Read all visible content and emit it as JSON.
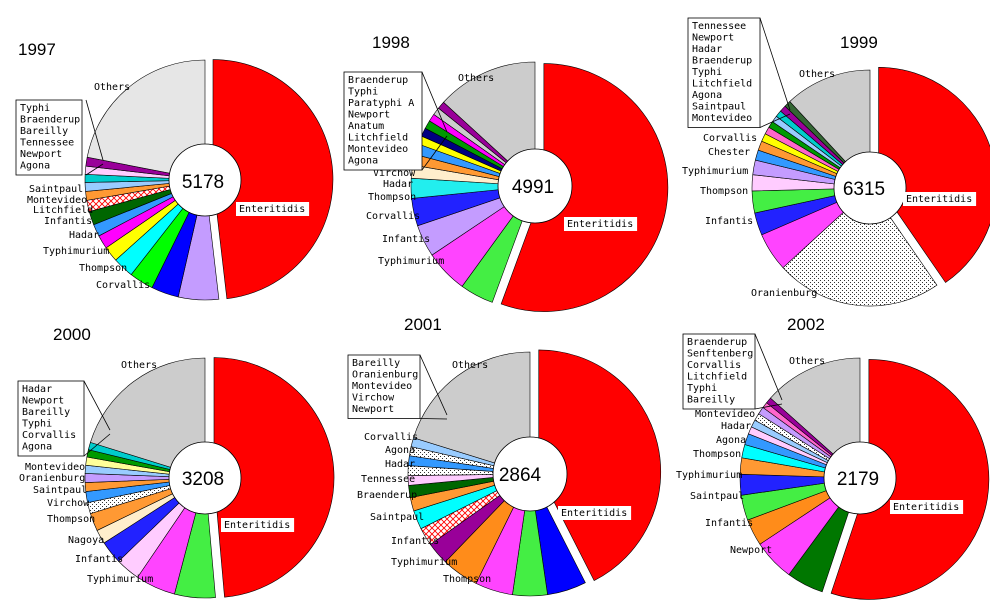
{
  "chart_data": [
    {
      "type": "pie",
      "title": "1997",
      "total": "5178",
      "slices": [
        {
          "name": "Enteritidis",
          "value": 44.3,
          "color": "#ff0000",
          "label": "Enteritidis"
        },
        {
          "name": "Corvallis",
          "value": 5.0,
          "color": "#c49cff",
          "label": "Corvallis"
        },
        {
          "name": "Thompson",
          "value": 3.4,
          "color": "#0000ff",
          "label": "Thompson"
        },
        {
          "name": "Typhimurium",
          "value": 3.0,
          "color": "#00ff00",
          "label": "Typhimurium"
        },
        {
          "name": "Hadar",
          "value": 2.6,
          "color": "#00ffff",
          "label": "Hadar"
        },
        {
          "name": "Infantis",
          "value": 1.9,
          "color": "#ffff00",
          "label": "Infantis"
        },
        {
          "name": "Litchfield",
          "value": 1.7,
          "color": "#ff00ff",
          "label": "Litchfield"
        },
        {
          "name": "Montevideo",
          "value": 1.5,
          "color": "#3399ff",
          "label": "Montevideo"
        },
        {
          "name": "Saintpaul",
          "value": 1.7,
          "color": "#006600",
          "label": "Saintpaul"
        },
        {
          "name": "Agona",
          "value": 1.4,
          "color": "#ffffff",
          "pattern": "hatchRed"
        },
        {
          "name": "Newport",
          "value": 1.1,
          "color": "#ff9933"
        },
        {
          "name": "Tennessee",
          "value": 1.1,
          "color": "#99ccff"
        },
        {
          "name": "Bareilly",
          "value": 1.0,
          "color": "#00cccc"
        },
        {
          "name": "Braenderup",
          "value": 1.0,
          "color": "#ffccff"
        },
        {
          "name": "Typhi",
          "value": 1.1,
          "color": "#990099"
        },
        {
          "name": "Others",
          "value": 20.2,
          "color": "#e6e6e6",
          "label": "Others"
        }
      ],
      "box": [
        "Typhi",
        "Braenderup",
        "Bareilly",
        "Tennessee",
        "Newport",
        "Agona"
      ]
    },
    {
      "type": "pie",
      "title": "1998",
      "total": "4991",
      "slices": [
        {
          "name": "Enteritidis",
          "value": 55.6,
          "color": "#ff0000",
          "label": "Enteritidis"
        },
        {
          "name": "Typhimurium",
          "value": 4.4,
          "color": "#44ee44",
          "label": "Typhimurium"
        },
        {
          "name": "Infantis",
          "value": 5.6,
          "color": "#ff44ff",
          "label": "Infantis"
        },
        {
          "name": "Corvallis",
          "value": 4.2,
          "color": "#c49cff",
          "label": "Corvallis"
        },
        {
          "name": "Thompson",
          "value": 3.6,
          "color": "#2222ff",
          "label": "Thompson"
        },
        {
          "name": "Hadar",
          "value": 2.6,
          "color": "#22eeee",
          "label": "Hadar"
        },
        {
          "name": "Virchow",
          "value": 1.7,
          "color": "#ffeecc",
          "label": "Virchow"
        },
        {
          "name": "Agona",
          "value": 1.4,
          "color": "#ff9933"
        },
        {
          "name": "Montevideo",
          "value": 1.4,
          "color": "#3399ff"
        },
        {
          "name": "Litchfield",
          "value": 1.1,
          "color": "#ffff00"
        },
        {
          "name": "Anatum",
          "value": 1.1,
          "color": "#000080"
        },
        {
          "name": "Newport",
          "value": 1.1,
          "color": "#009900"
        },
        {
          "name": "Paratyphi A",
          "value": 1.0,
          "color": "#ff00ff"
        },
        {
          "name": "Typhi",
          "value": 1.0,
          "color": "#cccccc"
        },
        {
          "name": "Braenderup",
          "value": 1.0,
          "color": "#990099"
        },
        {
          "name": "Others",
          "value": 13.2,
          "color": "#cccccc",
          "label": "Others"
        }
      ],
      "box": [
        "Braenderup",
        "Typhi",
        "Paratyphi A",
        "Newport",
        "Anatum",
        "Litchfield",
        "Montevideo",
        "Agona"
      ]
    },
    {
      "type": "pie",
      "title": "1999",
      "total": "6315",
      "slices": [
        {
          "name": "Enteritidis",
          "value": 40.4,
          "color": "#ff0000",
          "label": "Enteritidis"
        },
        {
          "name": "Oranienburg",
          "value": 22.8,
          "color": "#ffffff",
          "pattern": "dots",
          "label": "Oranienburg"
        },
        {
          "name": "Infantis",
          "value": 5.3,
          "color": "#ff44ff",
          "label": "Infantis"
        },
        {
          "name": "Thompson",
          "value": 3.1,
          "color": "#2222ff",
          "label": "Thompson"
        },
        {
          "name": "Typhimurium",
          "value": 3.0,
          "color": "#44ee44",
          "label": "Typhimurium"
        },
        {
          "name": "Chester",
          "value": 2.2,
          "color": "#ffccff",
          "label": "Chester"
        },
        {
          "name": "Corvallis",
          "value": 2.0,
          "color": "#c49cff",
          "label": "Corvallis"
        },
        {
          "name": "Montevideo",
          "value": 1.4,
          "color": "#3399ff"
        },
        {
          "name": "Saintpaul",
          "value": 1.3,
          "color": "#ff9933"
        },
        {
          "name": "Agona",
          "value": 1.1,
          "color": "#ffff00"
        },
        {
          "name": "Litchfield",
          "value": 1.0,
          "color": "#ff66cc"
        },
        {
          "name": "Typhi",
          "value": 0.9,
          "color": "#009900"
        },
        {
          "name": "Braenderup",
          "value": 0.9,
          "color": "#99ccff"
        },
        {
          "name": "Hadar",
          "value": 0.9,
          "color": "#00cccc"
        },
        {
          "name": "Newport",
          "value": 0.9,
          "color": "#990099"
        },
        {
          "name": "Tennessee",
          "value": 0.9,
          "color": "#336633"
        },
        {
          "name": "Others",
          "value": 11.9,
          "color": "#cccccc",
          "label": "Others"
        }
      ],
      "box": [
        "Tennessee",
        "Newport",
        "Hadar",
        "Braenderup",
        "Typhi",
        "Litchfield",
        "Agona",
        "Saintpaul",
        "Montevideo"
      ]
    },
    {
      "type": "pie",
      "title": "2000",
      "total": "3208",
      "slices": [
        {
          "name": "Enteritidis",
          "value": 48.6,
          "color": "#ff0000",
          "label": "Enteritidis"
        },
        {
          "name": "Typhimurium",
          "value": 5.5,
          "color": "#44ee44",
          "label": "Typhimurium"
        },
        {
          "name": "Infantis",
          "value": 5.4,
          "color": "#ff44ff",
          "label": "Infantis"
        },
        {
          "name": "Nagoya",
          "value": 3.3,
          "color": "#ffccff",
          "label": "Nagoya"
        },
        {
          "name": "Thompson",
          "value": 3.1,
          "color": "#2222ff",
          "label": "Thompson"
        },
        {
          "name": "Virchow",
          "value": 1.9,
          "color": "#ffeecc",
          "label": "Virchow"
        },
        {
          "name": "Saintpaul",
          "value": 2.4,
          "color": "#ff9933",
          "label": "Saintpaul"
        },
        {
          "name": "Oranienburg",
          "value": 1.5,
          "color": "#ffffff",
          "pattern": "dots",
          "label": "Oranienburg"
        },
        {
          "name": "Montevideo",
          "value": 1.5,
          "color": "#3399ff",
          "label": "Montevideo"
        },
        {
          "name": "Agona",
          "value": 1.2,
          "color": "#ff9933"
        },
        {
          "name": "Corvallis",
          "value": 1.2,
          "color": "#c49cff"
        },
        {
          "name": "Typhi",
          "value": 1.1,
          "color": "#99ccff"
        },
        {
          "name": "Bareilly",
          "value": 1.1,
          "color": "#ffff99"
        },
        {
          "name": "Newport",
          "value": 1.0,
          "color": "#009900"
        },
        {
          "name": "Hadar",
          "value": 1.0,
          "color": "#00cccc"
        },
        {
          "name": "Others",
          "value": 20.2,
          "color": "#cccccc",
          "label": "Others"
        }
      ],
      "box": [
        "Hadar",
        "Newport",
        "Bareilly",
        "Typhi",
        "Corvallis",
        "Agona"
      ]
    },
    {
      "type": "pie",
      "title": "2001",
      "total": "2864",
      "slices": [
        {
          "name": "Enteritidis",
          "value": 42.5,
          "color": "#ff0000",
          "label": "Enteritidis"
        },
        {
          "name": "Thompson",
          "value": 5.2,
          "color": "#0000ff",
          "label": "Thompson"
        },
        {
          "name": "Typhimurium",
          "value": 4.6,
          "color": "#44ee44",
          "label": "Typhimurium"
        },
        {
          "name": "Infantis",
          "value": 5.0,
          "color": "#ff44ff",
          "label": "Infantis"
        },
        {
          "name": "Saintpaul",
          "value": 4.9,
          "color": "#ff8c1a",
          "label": "Saintpaul"
        },
        {
          "name": "Braenderup",
          "value": 3.0,
          "color": "#990099",
          "label": "Braenderup"
        },
        {
          "name": "Tennessee",
          "value": 2.4,
          "color": "#ffffff",
          "pattern": "hatchRed",
          "label": "Tennessee"
        },
        {
          "name": "Hadar",
          "value": 2.5,
          "color": "#00ffff",
          "label": "Hadar"
        },
        {
          "name": "Agona",
          "value": 1.8,
          "color": "#ff9933",
          "label": "Agona"
        },
        {
          "name": "Corvallis",
          "value": 1.6,
          "color": "#006600",
          "label": "Corvallis"
        },
        {
          "name": "Newport",
          "value": 1.3,
          "color": "#ffccff"
        },
        {
          "name": "Virchow",
          "value": 1.3,
          "color": "#ffffff",
          "pattern": "dots"
        },
        {
          "name": "Montevideo",
          "value": 1.3,
          "color": "#3399ff"
        },
        {
          "name": "Oranienburg",
          "value": 1.2,
          "color": "#ffffff",
          "pattern": "dots"
        },
        {
          "name": "Bareilly",
          "value": 1.2,
          "color": "#99ccff"
        },
        {
          "name": "Others",
          "value": 20.2,
          "color": "#cccccc",
          "label": "Others"
        }
      ],
      "box": [
        "Bareilly",
        "Oranienburg",
        "Montevideo",
        "Virchow",
        "Newport"
      ]
    },
    {
      "type": "pie",
      "title": "2002",
      "total": "2179",
      "slices": [
        {
          "name": "Enteritidis",
          "value": 55.1,
          "color": "#ff0000",
          "label": "Enteritidis"
        },
        {
          "name": "Newport",
          "value": 5.0,
          "color": "#007700",
          "label": "Newport"
        },
        {
          "name": "Infantis",
          "value": 5.6,
          "color": "#ff44ff",
          "label": "Infantis"
        },
        {
          "name": "Saintpaul",
          "value": 3.6,
          "color": "#ff8c1a",
          "label": "Saintpaul"
        },
        {
          "name": "Typhimurium",
          "value": 3.4,
          "color": "#44ee44",
          "label": "Typhimurium"
        },
        {
          "name": "Thompson",
          "value": 2.8,
          "color": "#2222ff",
          "label": "Thompson"
        },
        {
          "name": "Agona",
          "value": 2.2,
          "color": "#ff9933",
          "label": "Agona"
        },
        {
          "name": "Hadar",
          "value": 1.8,
          "color": "#00ffff",
          "label": "Hadar"
        },
        {
          "name": "Montevideo",
          "value": 1.5,
          "color": "#3399ff",
          "label": "Montevideo"
        },
        {
          "name": "Bareilly",
          "value": 1.0,
          "color": "#ffccff"
        },
        {
          "name": "Typhi",
          "value": 1.0,
          "color": "#99ccff"
        },
        {
          "name": "Litchfield",
          "value": 1.0,
          "color": "#ffffff",
          "pattern": "dots"
        },
        {
          "name": "Corvallis",
          "value": 1.0,
          "color": "#c49cff"
        },
        {
          "name": "Senftenberg",
          "value": 0.8,
          "color": "#ff66cc"
        },
        {
          "name": "Braenderup",
          "value": 0.8,
          "color": "#990099"
        },
        {
          "name": "Others",
          "value": 13.4,
          "color": "#cccccc",
          "label": "Others"
        }
      ],
      "box": [
        "Braenderup",
        "Senftenberg",
        "Corvallis",
        "Litchfield",
        "Typhi",
        "Bareilly"
      ]
    }
  ]
}
